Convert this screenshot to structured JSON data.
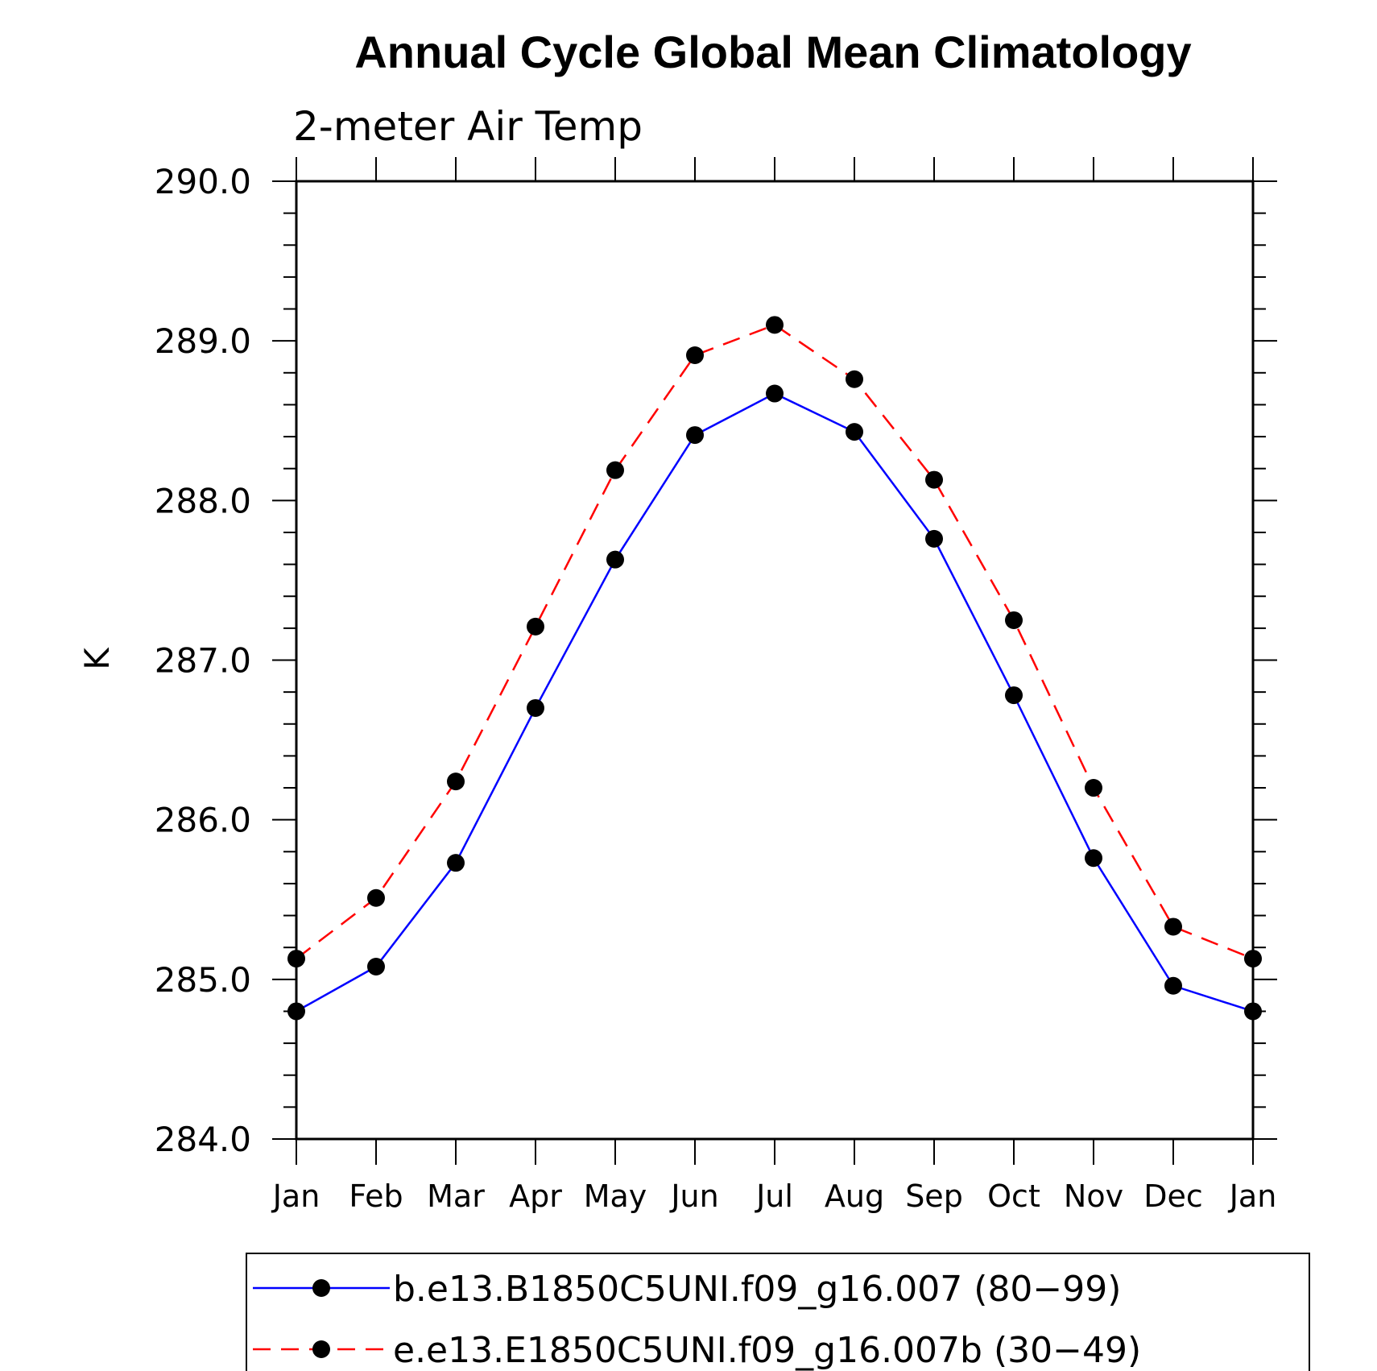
{
  "chart_data": {
    "type": "line",
    "title": "Annual Cycle Global Mean Climatology",
    "subtitle": "2-meter Air Temp",
    "xlabel": "",
    "ylabel": "K",
    "categories": [
      "Jan",
      "Feb",
      "Mar",
      "Apr",
      "May",
      "Jun",
      "Jul",
      "Aug",
      "Sep",
      "Oct",
      "Nov",
      "Dec",
      "Jan"
    ],
    "ylim": [
      284.0,
      290.0
    ],
    "yticks": [
      "284.0",
      "285.0",
      "286.0",
      "287.0",
      "288.0",
      "289.0",
      "290.0"
    ],
    "y_minor_step": 0.2,
    "grid": false,
    "legend_position": "bottom",
    "series": [
      {
        "name": "b.e13.B1850C5UNI.f09_g16.007 (80−99)",
        "color": "#0000ff",
        "line_style": "solid",
        "marker": "filled-circle",
        "values": [
          284.8,
          285.08,
          285.73,
          286.7,
          287.63,
          288.41,
          288.67,
          288.43,
          287.76,
          286.78,
          285.76,
          284.96,
          284.8
        ]
      },
      {
        "name": "e.e13.E1850C5UNI.f09_g16.007b (30−49)",
        "color": "#ff0000",
        "line_style": "dashed",
        "marker": "filled-circle",
        "values": [
          285.13,
          285.51,
          286.24,
          287.21,
          288.19,
          288.91,
          289.1,
          288.76,
          288.13,
          287.25,
          286.2,
          285.33,
          285.13
        ]
      }
    ]
  }
}
